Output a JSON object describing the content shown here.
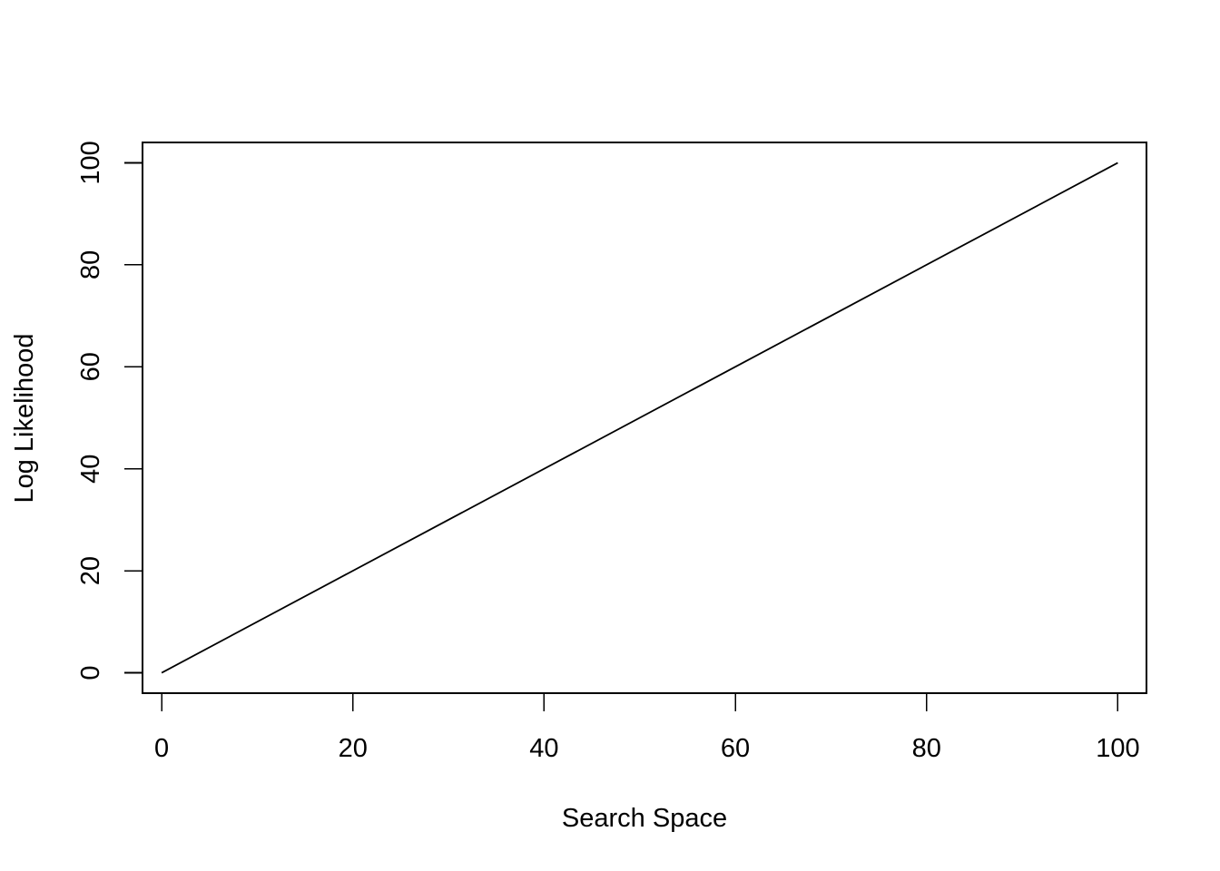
{
  "chart_data": {
    "type": "line",
    "title": "",
    "xlabel": "Search Space",
    "ylabel": "Log Likelihood",
    "xlim": [
      -2,
      103
    ],
    "ylim": [
      -4,
      104
    ],
    "xticks": [
      0,
      20,
      40,
      60,
      80,
      100
    ],
    "yticks": [
      0,
      20,
      40,
      60,
      80,
      100
    ],
    "grid": false,
    "legend": "none",
    "series": [
      {
        "color": "#000000",
        "x": [
          0,
          100
        ],
        "y": [
          0,
          100
        ]
      }
    ]
  }
}
